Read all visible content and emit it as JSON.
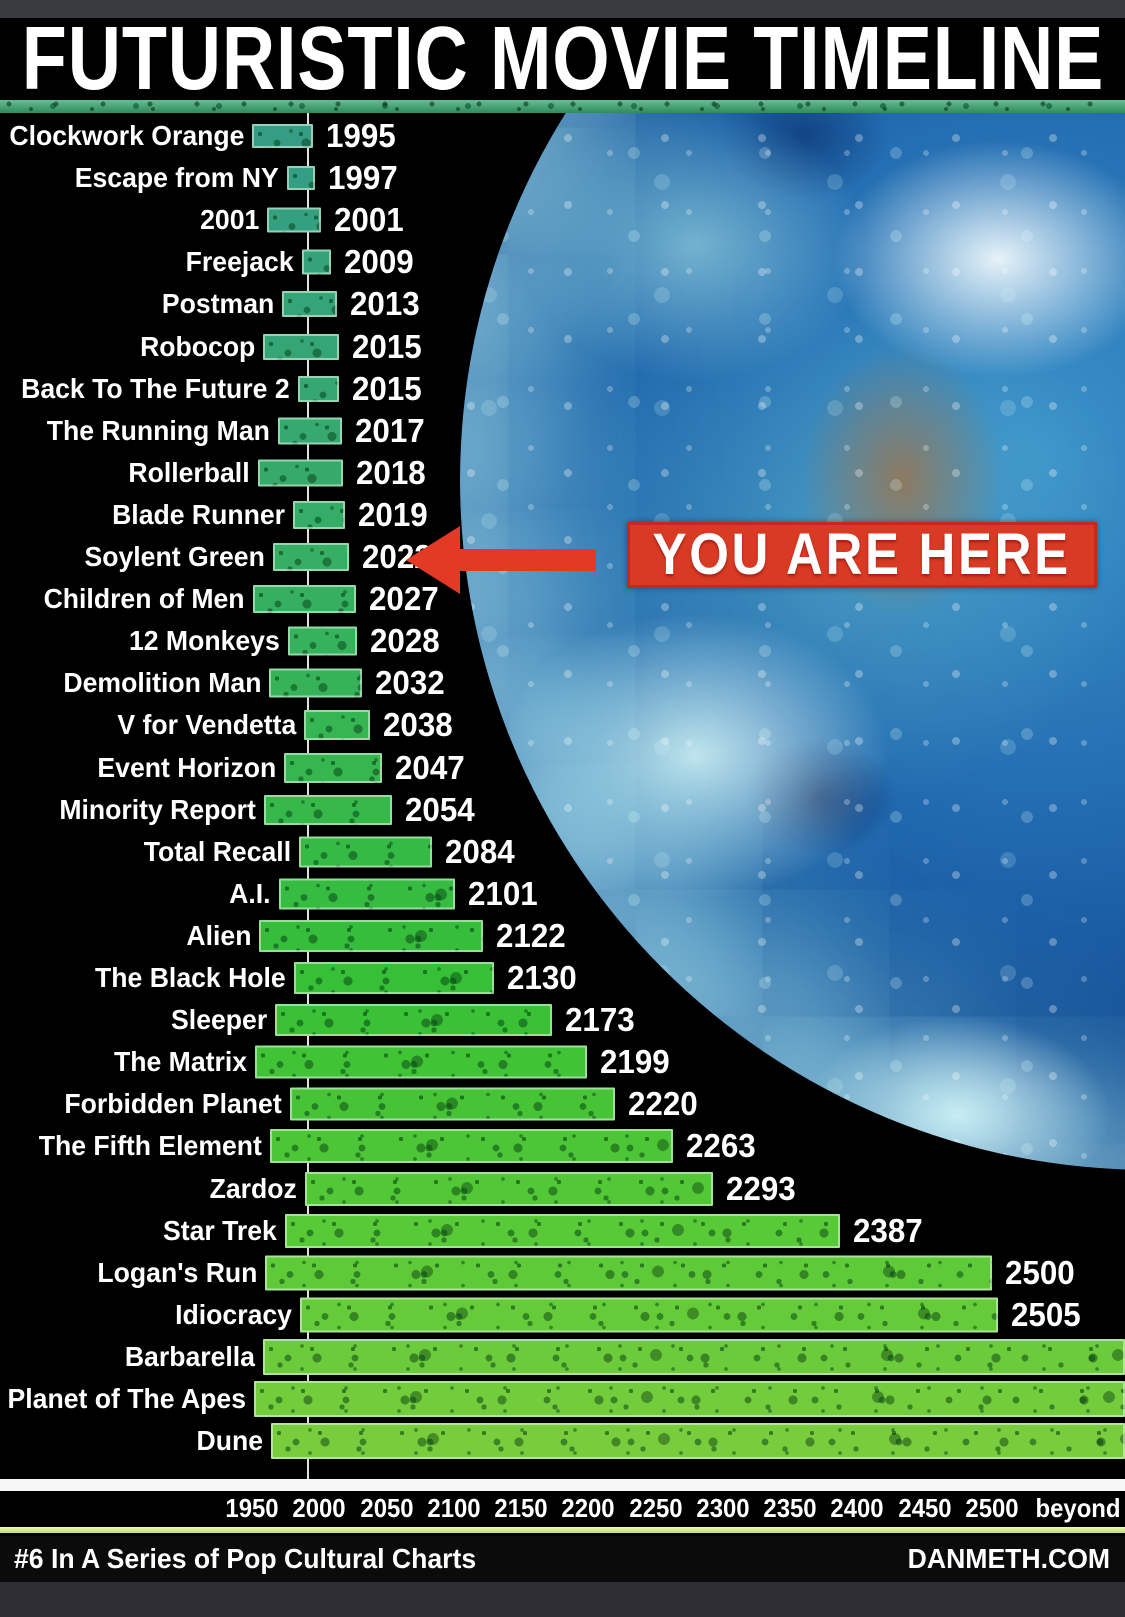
{
  "header": {
    "title": "FUTURISTIC MOVIE TIMELINE"
  },
  "annotation": {
    "label": "YOU ARE HERE",
    "target_movie": "Soylent Green",
    "target_year": "2022"
  },
  "chart_data": {
    "type": "bar",
    "orientation": "horizontal",
    "title": "FUTURISTIC MOVIE TIMELINE",
    "x_axis": {
      "min": 1950,
      "max": 2500,
      "tick_step": 50,
      "tick_labels": [
        "1950",
        "2000",
        "2050",
        "2100",
        "2150",
        "2200",
        "2250",
        "2300",
        "2350",
        "2400",
        "2450",
        "2500",
        "beyond"
      ],
      "overflow_label": "beyond"
    },
    "reference_line_year": 2000,
    "bars": [
      {
        "movie": "Clockwork Orange",
        "year": 1995,
        "year_label": "1995",
        "beyond": false
      },
      {
        "movie": "Escape from NY",
        "year": 1997,
        "year_label": "1997",
        "beyond": false
      },
      {
        "movie": "2001",
        "year": 2001,
        "year_label": "2001",
        "beyond": false
      },
      {
        "movie": "Freejack",
        "year": 2009,
        "year_label": "2009",
        "beyond": false
      },
      {
        "movie": "Postman",
        "year": 2013,
        "year_label": "2013",
        "beyond": false
      },
      {
        "movie": "Robocop",
        "year": 2015,
        "year_label": "2015",
        "beyond": false
      },
      {
        "movie": "Back To The Future 2",
        "year": 2015,
        "year_label": "2015",
        "beyond": false
      },
      {
        "movie": "The Running Man",
        "year": 2017,
        "year_label": "2017",
        "beyond": false
      },
      {
        "movie": "Rollerball",
        "year": 2018,
        "year_label": "2018",
        "beyond": false
      },
      {
        "movie": "Blade Runner",
        "year": 2019,
        "year_label": "2019",
        "beyond": false
      },
      {
        "movie": "Soylent Green",
        "year": 2022,
        "year_label": "2022",
        "beyond": false
      },
      {
        "movie": "Children of Men",
        "year": 2027,
        "year_label": "2027",
        "beyond": false
      },
      {
        "movie": "12 Monkeys",
        "year": 2028,
        "year_label": "2028",
        "beyond": false
      },
      {
        "movie": "Demolition Man",
        "year": 2032,
        "year_label": "2032",
        "beyond": false
      },
      {
        "movie": "V for Vendetta",
        "year": 2038,
        "year_label": "2038",
        "beyond": false
      },
      {
        "movie": "Event Horizon",
        "year": 2047,
        "year_label": "2047",
        "beyond": false
      },
      {
        "movie": "Minority Report",
        "year": 2054,
        "year_label": "2054",
        "beyond": false
      },
      {
        "movie": "Total Recall",
        "year": 2084,
        "year_label": "2084",
        "beyond": false
      },
      {
        "movie": "A.I.",
        "year": 2101,
        "year_label": "2101",
        "beyond": false
      },
      {
        "movie": "Alien",
        "year": 2122,
        "year_label": "2122",
        "beyond": false
      },
      {
        "movie": "The Black Hole",
        "year": 2130,
        "year_label": "2130",
        "beyond": false
      },
      {
        "movie": "Sleeper",
        "year": 2173,
        "year_label": "2173",
        "beyond": false
      },
      {
        "movie": "The Matrix",
        "year": 2199,
        "year_label": "2199",
        "beyond": false
      },
      {
        "movie": "Forbidden Planet",
        "year": 2220,
        "year_label": "2220",
        "beyond": false
      },
      {
        "movie": "The Fifth Element",
        "year": 2263,
        "year_label": "2263",
        "beyond": false
      },
      {
        "movie": "Zardoz",
        "year": 2293,
        "year_label": "2293",
        "beyond": false
      },
      {
        "movie": "Star Trek",
        "year": 2387,
        "year_label": "2387",
        "beyond": false
      },
      {
        "movie": "Logan's Run",
        "year": 2500,
        "year_label": "2500",
        "beyond": false
      },
      {
        "movie": "Idiocracy",
        "year": 2505,
        "year_label": "2505",
        "beyond": false
      },
      {
        "movie": "Barbarella",
        "year": null,
        "year_label": "",
        "beyond": true
      },
      {
        "movie": "Planet of The Apes",
        "year": null,
        "year_label": "",
        "beyond": true
      },
      {
        "movie": "Dune",
        "year": null,
        "year_label": "",
        "beyond": true
      }
    ],
    "legend": false,
    "grid": false
  },
  "colors": {
    "background": "#000000",
    "frame_strip": "#3a3a41",
    "bar_teal_start": "#35a38a",
    "bar_green_end": "#7dd03f",
    "annotation_red": "#d93a24",
    "divider_teal": "#4fae82",
    "rule_yellow_green": "#d6ea8e",
    "axis_strip_white": "#f7f7f7",
    "text_white": "#ffffff"
  },
  "footer": {
    "left": "#6 In A Series of Pop Cultural Charts",
    "right": "DANMETH.COM"
  }
}
